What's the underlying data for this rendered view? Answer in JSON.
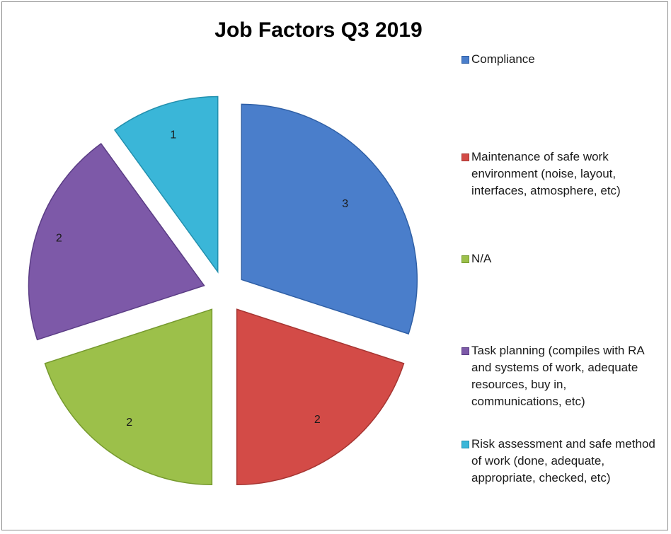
{
  "chart_data": {
    "type": "pie",
    "title": "Job Factors Q3 2019",
    "exploded": true,
    "legend_position": "right",
    "categories": [
      "Compliance",
      "Maintenance of safe work environment (noise, layout, interfaces, atmosphere, etc)",
      "N/A",
      "Task planning (compiles with RA and systems of work, adequate resources, buy in, communications, etc)",
      "Risk assessment and safe method of work (done, adequate, appropriate, checked, etc)"
    ],
    "values": [
      3,
      2,
      2,
      2,
      1
    ],
    "data_labels": [
      "3",
      "2",
      "2",
      "2",
      "1"
    ],
    "colors": [
      "#4a7ecb",
      "#d34b47",
      "#9cc04a",
      "#7d59a8",
      "#3ab6d8"
    ],
    "edge_colors": [
      "#2f5fa5",
      "#a63532",
      "#769a2e",
      "#5b3d85",
      "#2390ae"
    ]
  }
}
